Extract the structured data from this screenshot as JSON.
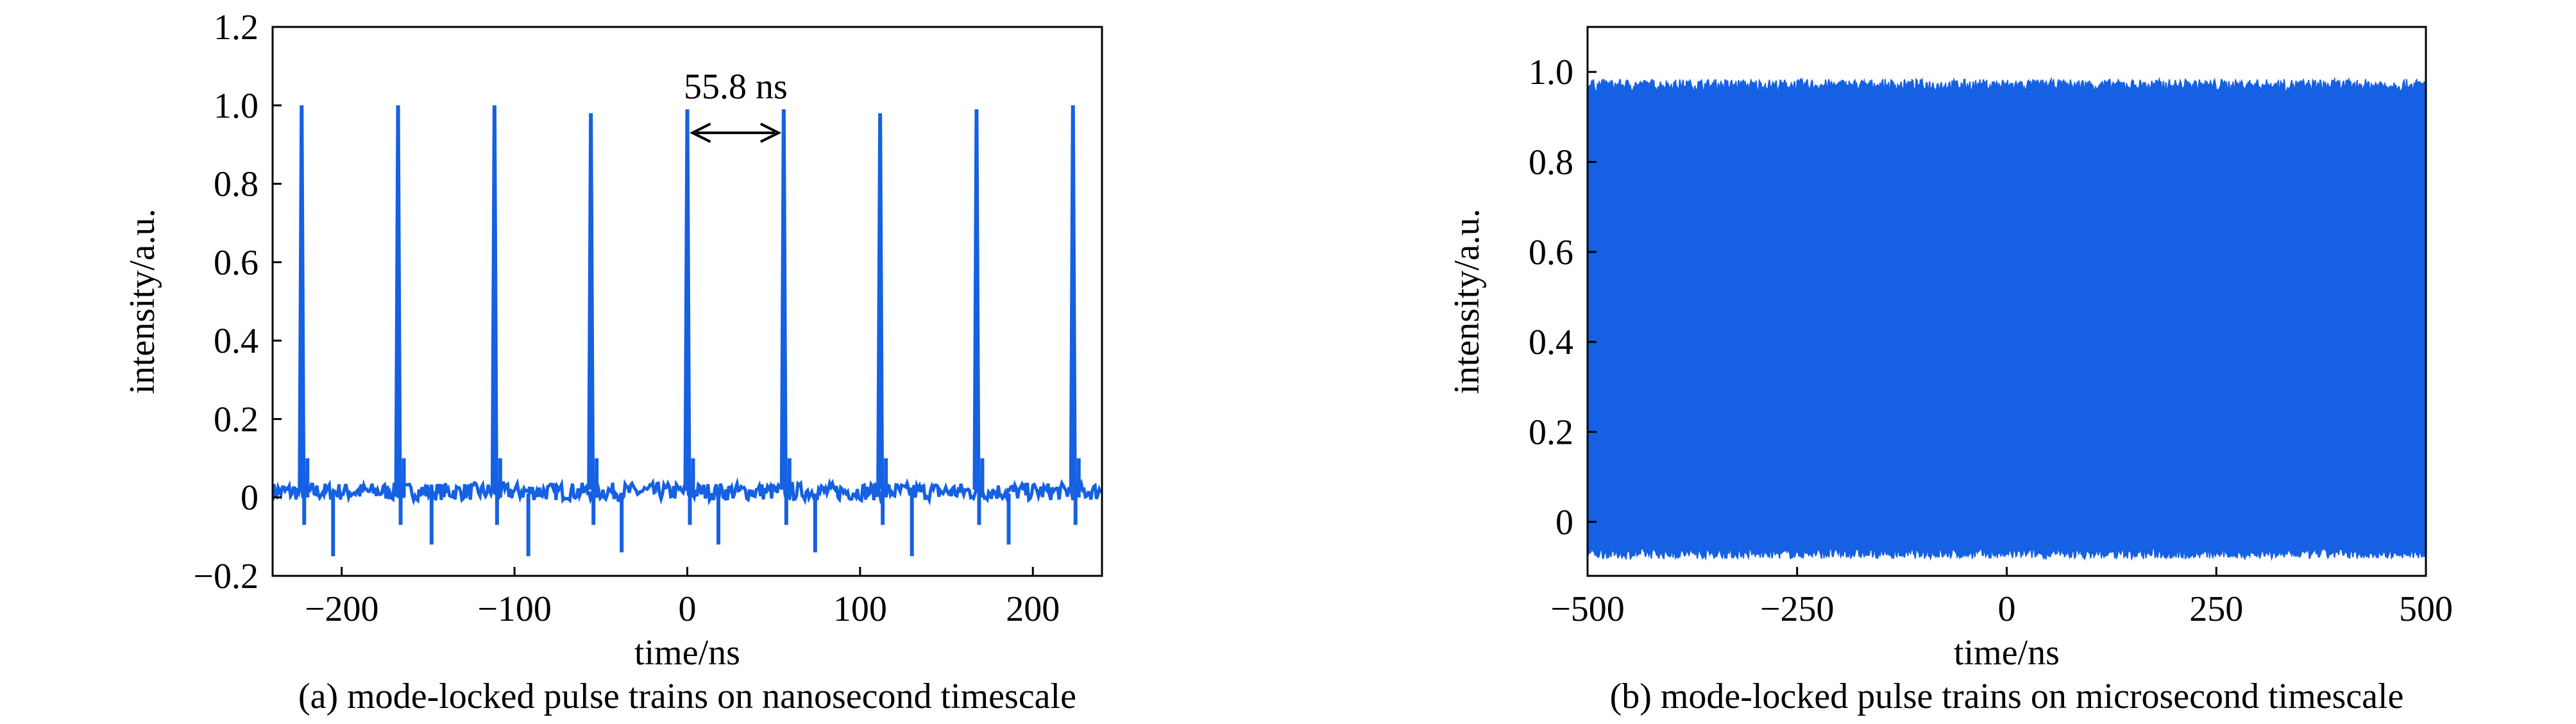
{
  "colors": {
    "series": "#1560e3",
    "axes": "#000000",
    "background": "#ffffff"
  },
  "chart_data": [
    {
      "type": "line",
      "caption": "(a) mode-locked pulse trains on nanosecond timescale",
      "xlabel": "time/ns",
      "ylabel": "intensity/a.u.",
      "xlim": [
        -240,
        240
      ],
      "ylim": [
        -0.2,
        1.2
      ],
      "xticks": [
        -200,
        -100,
        0,
        100,
        200
      ],
      "xtick_labels": [
        "−200",
        "−100",
        "0",
        "100",
        "200"
      ],
      "yticks": [
        -0.2,
        0,
        0.2,
        0.4,
        0.6,
        0.8,
        1.0,
        1.2
      ],
      "ytick_labels": [
        "−0.2",
        "0",
        "0.2",
        "0.4",
        "0.6",
        "0.8",
        "1.0",
        "1.2"
      ],
      "grid": false,
      "series": [
        {
          "baseline": 0.015,
          "pulse_period": 55.8,
          "pulse_times": [
            -223.2,
            -167.4,
            -111.6,
            -55.8,
            0.0,
            55.8,
            111.6,
            167.4,
            223.2
          ],
          "pulse_peaks": [
            1.0,
            1.0,
            1.0,
            0.98,
            0.99,
            0.99,
            0.98,
            0.99,
            1.0
          ],
          "negative_dips": [
            {
              "x": -205,
              "y": -0.15
            },
            {
              "x": -148,
              "y": -0.12
            },
            {
              "x": -92,
              "y": -0.15
            },
            {
              "x": -38,
              "y": -0.14
            },
            {
              "x": 18,
              "y": -0.12
            },
            {
              "x": 74,
              "y": -0.14
            },
            {
              "x": 130,
              "y": -0.15
            },
            {
              "x": 186,
              "y": -0.12
            }
          ]
        }
      ],
      "annotation": {
        "text": "55.8 ns",
        "arrow_from": [
          0,
          0.93
        ],
        "arrow_to": [
          55.8,
          0.93
        ],
        "text_at": [
          28,
          1.05
        ]
      }
    },
    {
      "type": "area",
      "caption": "(b) mode-locked pulse trains on microsecond timescale",
      "xlabel": "time/ns",
      "ylabel": "intensity/a.u.",
      "xlim": [
        -500,
        500
      ],
      "ylim": [
        -0.12,
        1.1
      ],
      "xticks": [
        -500,
        -250,
        0,
        250,
        500
      ],
      "xtick_labels": [
        "−500",
        "−250",
        "0",
        "250",
        "500"
      ],
      "yticks": [
        0,
        0.2,
        0.4,
        0.6,
        0.8,
        1.0
      ],
      "ytick_labels": [
        "0",
        "0.2",
        "0.4",
        "0.6",
        "0.8",
        "1.0"
      ],
      "grid": false,
      "series": [
        {
          "x_range": [
            -500,
            500
          ],
          "upper_envelope": 0.97,
          "lower_envelope": -0.07
        }
      ]
    }
  ]
}
